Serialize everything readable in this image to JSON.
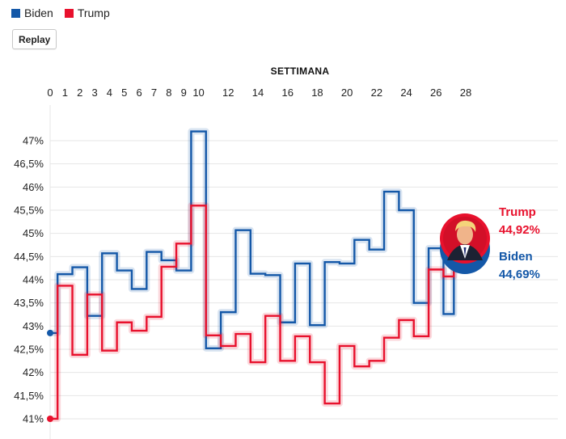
{
  "legend": [
    {
      "label": "Biden",
      "color": "#1458a8"
    },
    {
      "label": "Trump",
      "color": "#e8112d"
    }
  ],
  "replay_label": "Replay",
  "chart_data": {
    "type": "line",
    "step": true,
    "xlabel": "SETTIMANA",
    "x_ticks": [
      0,
      1,
      2,
      3,
      4,
      5,
      6,
      7,
      8,
      9,
      10,
      12,
      14,
      16,
      18,
      20,
      22,
      24,
      26,
      28
    ],
    "xlim": [
      0,
      28
    ],
    "ylim": [
      41,
      47.5
    ],
    "y_ticks": [
      "47%",
      "46,5%",
      "46%",
      "45,5%",
      "45%",
      "44,5%",
      "44%",
      "43,5%",
      "43%",
      "42,5%",
      "42%",
      "41,5%",
      "41%"
    ],
    "y_tick_values": [
      47,
      46.5,
      46,
      45.5,
      45,
      44.5,
      44,
      43.5,
      43,
      42.5,
      42,
      41.5,
      41
    ],
    "series": [
      {
        "name": "Biden",
        "color": "#1458a8",
        "x": [
          0,
          0.5,
          1.5,
          2.5,
          3.5,
          4.5,
          5.5,
          6.5,
          7.5,
          8.5,
          9.5,
          10.5,
          11.5,
          12.5,
          13.5,
          14.5,
          15.5,
          16.5,
          17.5,
          18.5,
          19.5,
          20.5,
          21.5,
          22.5,
          23.5,
          24.5,
          25.5,
          26.5,
          27.2
        ],
        "values": [
          42.85,
          44.12,
          44.27,
          43.22,
          44.57,
          44.2,
          43.8,
          44.6,
          44.42,
          44.2,
          47.2,
          42.52,
          43.3,
          45.07,
          44.13,
          44.1,
          43.08,
          44.35,
          43.02,
          44.38,
          44.35,
          44.86,
          44.65,
          45.9,
          45.5,
          43.5,
          44.68,
          43.26,
          44.69
        ],
        "end_label": "Biden",
        "end_value": "44,69%"
      },
      {
        "name": "Trump",
        "color": "#e8112d",
        "x": [
          0,
          0.5,
          1.5,
          2.5,
          3.5,
          4.5,
          5.5,
          6.5,
          7.5,
          8.5,
          9.5,
          10.5,
          11.5,
          12.5,
          13.5,
          14.5,
          15.5,
          16.5,
          17.5,
          18.5,
          19.5,
          20.5,
          21.5,
          22.5,
          23.5,
          24.5,
          25.5,
          26.5,
          27.2
        ],
        "values": [
          41.0,
          43.87,
          42.38,
          43.68,
          42.47,
          43.08,
          42.9,
          43.2,
          44.28,
          44.78,
          45.6,
          42.8,
          42.57,
          42.83,
          42.22,
          43.22,
          42.25,
          42.78,
          42.22,
          41.33,
          42.57,
          42.13,
          42.25,
          42.75,
          43.13,
          42.78,
          44.22,
          44.07,
          44.92
        ],
        "end_label": "Trump",
        "end_value": "44,92%"
      }
    ],
    "grid": true
  }
}
